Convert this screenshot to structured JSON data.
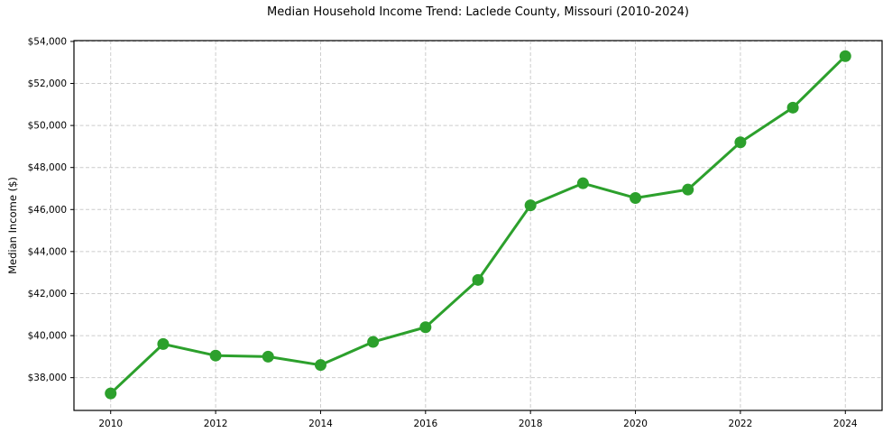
{
  "chart_data": {
    "type": "line",
    "title": "Median Household Income Trend: Laclede County, Missouri (2010-2024)",
    "xlabel": "",
    "ylabel": "Median Income ($)",
    "x": [
      2010,
      2011,
      2012,
      2013,
      2014,
      2015,
      2016,
      2017,
      2018,
      2019,
      2020,
      2021,
      2022,
      2023,
      2024
    ],
    "values": [
      37250,
      39600,
      39050,
      39000,
      38600,
      39700,
      40400,
      42650,
      46200,
      47250,
      46550,
      46950,
      49200,
      50850,
      53300
    ],
    "x_ticks": {
      "values": [
        2010,
        2012,
        2014,
        2016,
        2018,
        2020,
        2022,
        2024
      ],
      "labels": [
        "2010",
        "2012",
        "2014",
        "2016",
        "2018",
        "2020",
        "2022",
        "2024"
      ]
    },
    "y_ticks": {
      "values": [
        38000,
        40000,
        42000,
        44000,
        46000,
        48000,
        50000,
        52000,
        54000
      ],
      "labels": [
        "$38,000",
        "$40,000",
        "$42,000",
        "$44,000",
        "$46,000",
        "$48,000",
        "$50,000",
        "$52,000",
        "$54,000"
      ]
    },
    "xlim": [
      2009.3,
      2024.7
    ],
    "ylim": [
      36440,
      54040
    ],
    "grid": {
      "visible": true,
      "style": "dashed",
      "color": "#cccccc"
    },
    "legend": {
      "visible": false
    },
    "styles": {
      "line_color": "#2ca02c",
      "marker_color": "#2ca02c",
      "line_width": 3,
      "marker_radius": 6.5,
      "spine_color": "#000000",
      "tick_color": "#000000",
      "background": "#ffffff"
    }
  }
}
